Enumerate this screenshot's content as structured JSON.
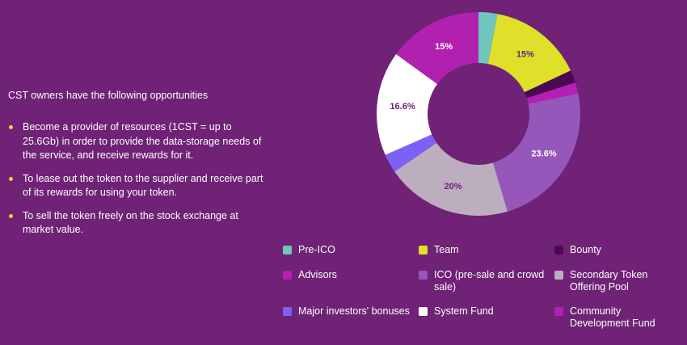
{
  "intro": "CST owners have the following opportunities",
  "bullet_color": "#e8dc2e",
  "bullets": [
    "Become a provider of resources (1CST = up to 25.6Gb) in order to provide the data-storage needs of the service, and receive rewards for it.",
    "To lease out the token to the supplier and receive part of its rewards for using your token.",
    "To sell the token freely on the stock exchange at market value."
  ],
  "chart_data": {
    "type": "pie",
    "donut": true,
    "categories": [
      "Pre-ICO",
      "Team",
      "Bounty",
      "Advisors",
      "ICO (pre-sale and crowd sale)",
      "Secondary Token Offering Pool",
      "Major investors' bonuses",
      "System Fund",
      "Community Development Fund"
    ],
    "values": [
      3,
      15,
      2,
      1.8,
      23.6,
      20,
      3,
      16.6,
      15
    ],
    "data_labels": [
      "",
      "15%",
      "",
      "",
      "23.6%",
      "20%",
      "",
      "16.6%",
      "15%"
    ],
    "colors": [
      "#6fc6bd",
      "#dfe02a",
      "#4a0a4f",
      "#b51fb5",
      "#9657ba",
      "#bcaebf",
      "#7b61f5",
      "#ffffff",
      "#b220b0"
    ],
    "label_colors": [
      "#ffffff",
      "#6f2276",
      "#ffffff",
      "#ffffff",
      "#ffffff",
      "#6f2276",
      "#ffffff",
      "#6f2276",
      "#ffffff"
    ],
    "legend_position": "bottom"
  },
  "legend": [
    {
      "label": "Pre-ICO",
      "color": "#6fc6bd"
    },
    {
      "label": "Team",
      "color": "#dfe02a"
    },
    {
      "label": "Bounty",
      "color": "#4a0a4f"
    },
    {
      "label": "Advisors",
      "color": "#b51fb5"
    },
    {
      "label": "ICO (pre-sale and crowd sale)",
      "color": "#9657ba"
    },
    {
      "label": "Secondary Token Offering Pool",
      "color": "#bcaebf"
    },
    {
      "label": "Major investors' bonuses",
      "color": "#7b61f5"
    },
    {
      "label": "System Fund",
      "color": "#ffffff"
    },
    {
      "label": "Community Development Fund",
      "color": "#b220b0"
    }
  ]
}
